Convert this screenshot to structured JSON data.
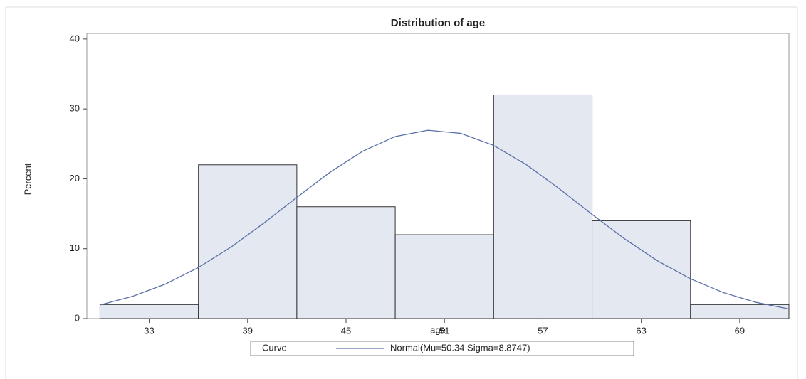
{
  "chart_data": {
    "type": "histogram",
    "title": "Distribution of age",
    "x_label": "age",
    "y_label": "Percent",
    "bins": [
      30,
      36,
      42,
      48,
      54,
      60,
      66,
      72
    ],
    "values": [
      2,
      22,
      16,
      12,
      32,
      14,
      2
    ],
    "color": "#e4e8f1",
    "xlim": [
      29.2,
      72
    ],
    "xticks": [
      33,
      39,
      45,
      51,
      57,
      63,
      69
    ],
    "ylim": [
      0,
      40.8
    ],
    "yticks": [
      0,
      10,
      20,
      30,
      40
    ],
    "legend_title": "Curve",
    "curve": {
      "name": "Normal(Mu=50.34 Sigma=8.8747)",
      "color": "#5a6ea8",
      "x": [
        30,
        32,
        34,
        36,
        38,
        40,
        42,
        44,
        46,
        48,
        50,
        52,
        54,
        56,
        58,
        60,
        62,
        64,
        66,
        68,
        70,
        72
      ],
      "values": [
        1.95,
        3.19,
        4.95,
        7.31,
        10.25,
        13.68,
        17.34,
        20.9,
        23.93,
        26.05,
        26.95,
        26.5,
        24.77,
        22.01,
        18.58,
        14.91,
        11.38,
        8.25,
        5.69,
        3.72,
        2.32,
        1.37
      ]
    }
  }
}
